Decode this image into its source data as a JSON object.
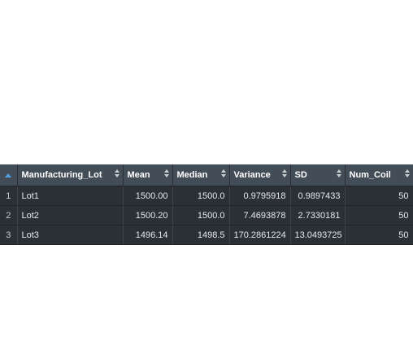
{
  "table": {
    "columns": [
      {
        "key": "Manufacturing_Lot",
        "label": "Manufacturing_Lot"
      },
      {
        "key": "Mean",
        "label": "Mean"
      },
      {
        "key": "Median",
        "label": "Median"
      },
      {
        "key": "Variance",
        "label": "Variance"
      },
      {
        "key": "SD",
        "label": "SD"
      },
      {
        "key": "Num_Coil",
        "label": "Num_Coil"
      }
    ],
    "rows": [
      {
        "num": "1",
        "cells": [
          "Lot1",
          "1500.00",
          "1500.0",
          "0.9795918",
          "0.9897433",
          "50"
        ]
      },
      {
        "num": "2",
        "cells": [
          "Lot2",
          "1500.20",
          "1500.0",
          "7.4693878",
          "2.7330181",
          "50"
        ]
      },
      {
        "num": "3",
        "cells": [
          "Lot3",
          "1496.14",
          "1498.5",
          "170.2861224",
          "13.0493725",
          "50"
        ]
      }
    ]
  },
  "colors": {
    "header_bg": "#434d57",
    "row_bg": "#2b3037",
    "sort_accent": "#4fa3e6"
  }
}
